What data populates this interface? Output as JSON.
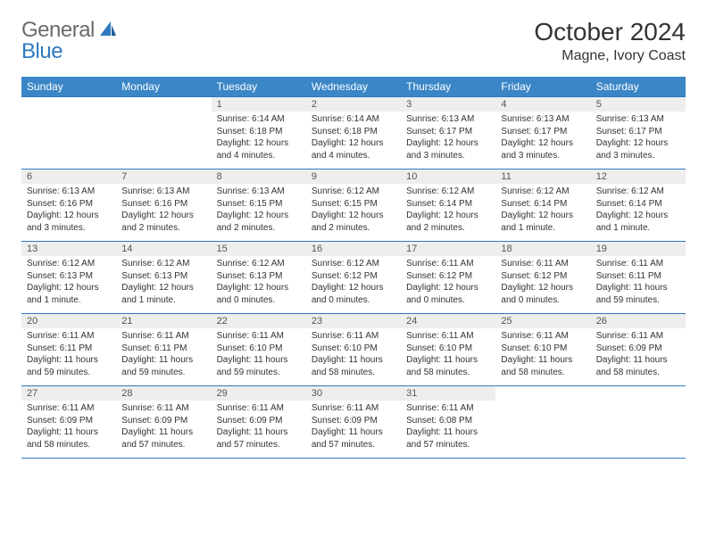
{
  "brand": {
    "general": "General",
    "blue": "Blue"
  },
  "title": {
    "month_year": "October 2024",
    "location": "Magne, Ivory Coast"
  },
  "headers": [
    "Sunday",
    "Monday",
    "Tuesday",
    "Wednesday",
    "Thursday",
    "Friday",
    "Saturday"
  ],
  "styling": {
    "header_bg": "#3b86c6",
    "header_text": "#ffffff",
    "daynum_bg": "#eeeeee",
    "rule_color": "#2f7abf",
    "body_text": "#333333",
    "font_family": "Arial, Helvetica, sans-serif",
    "title_fontsize": 28,
    "header_fontsize": 12,
    "daynum_fontsize": 11,
    "detail_fontsize": 10
  },
  "weeks": [
    [
      null,
      null,
      {
        "n": "1",
        "sr": "Sunrise: 6:14 AM",
        "ss": "Sunset: 6:18 PM",
        "dl": "Daylight: 12 hours and 4 minutes."
      },
      {
        "n": "2",
        "sr": "Sunrise: 6:14 AM",
        "ss": "Sunset: 6:18 PM",
        "dl": "Daylight: 12 hours and 4 minutes."
      },
      {
        "n": "3",
        "sr": "Sunrise: 6:13 AM",
        "ss": "Sunset: 6:17 PM",
        "dl": "Daylight: 12 hours and 3 minutes."
      },
      {
        "n": "4",
        "sr": "Sunrise: 6:13 AM",
        "ss": "Sunset: 6:17 PM",
        "dl": "Daylight: 12 hours and 3 minutes."
      },
      {
        "n": "5",
        "sr": "Sunrise: 6:13 AM",
        "ss": "Sunset: 6:17 PM",
        "dl": "Daylight: 12 hours and 3 minutes."
      }
    ],
    [
      {
        "n": "6",
        "sr": "Sunrise: 6:13 AM",
        "ss": "Sunset: 6:16 PM",
        "dl": "Daylight: 12 hours and 3 minutes."
      },
      {
        "n": "7",
        "sr": "Sunrise: 6:13 AM",
        "ss": "Sunset: 6:16 PM",
        "dl": "Daylight: 12 hours and 2 minutes."
      },
      {
        "n": "8",
        "sr": "Sunrise: 6:13 AM",
        "ss": "Sunset: 6:15 PM",
        "dl": "Daylight: 12 hours and 2 minutes."
      },
      {
        "n": "9",
        "sr": "Sunrise: 6:12 AM",
        "ss": "Sunset: 6:15 PM",
        "dl": "Daylight: 12 hours and 2 minutes."
      },
      {
        "n": "10",
        "sr": "Sunrise: 6:12 AM",
        "ss": "Sunset: 6:14 PM",
        "dl": "Daylight: 12 hours and 2 minutes."
      },
      {
        "n": "11",
        "sr": "Sunrise: 6:12 AM",
        "ss": "Sunset: 6:14 PM",
        "dl": "Daylight: 12 hours and 1 minute."
      },
      {
        "n": "12",
        "sr": "Sunrise: 6:12 AM",
        "ss": "Sunset: 6:14 PM",
        "dl": "Daylight: 12 hours and 1 minute."
      }
    ],
    [
      {
        "n": "13",
        "sr": "Sunrise: 6:12 AM",
        "ss": "Sunset: 6:13 PM",
        "dl": "Daylight: 12 hours and 1 minute."
      },
      {
        "n": "14",
        "sr": "Sunrise: 6:12 AM",
        "ss": "Sunset: 6:13 PM",
        "dl": "Daylight: 12 hours and 1 minute."
      },
      {
        "n": "15",
        "sr": "Sunrise: 6:12 AM",
        "ss": "Sunset: 6:13 PM",
        "dl": "Daylight: 12 hours and 0 minutes."
      },
      {
        "n": "16",
        "sr": "Sunrise: 6:12 AM",
        "ss": "Sunset: 6:12 PM",
        "dl": "Daylight: 12 hours and 0 minutes."
      },
      {
        "n": "17",
        "sr": "Sunrise: 6:11 AM",
        "ss": "Sunset: 6:12 PM",
        "dl": "Daylight: 12 hours and 0 minutes."
      },
      {
        "n": "18",
        "sr": "Sunrise: 6:11 AM",
        "ss": "Sunset: 6:12 PM",
        "dl": "Daylight: 12 hours and 0 minutes."
      },
      {
        "n": "19",
        "sr": "Sunrise: 6:11 AM",
        "ss": "Sunset: 6:11 PM",
        "dl": "Daylight: 11 hours and 59 minutes."
      }
    ],
    [
      {
        "n": "20",
        "sr": "Sunrise: 6:11 AM",
        "ss": "Sunset: 6:11 PM",
        "dl": "Daylight: 11 hours and 59 minutes."
      },
      {
        "n": "21",
        "sr": "Sunrise: 6:11 AM",
        "ss": "Sunset: 6:11 PM",
        "dl": "Daylight: 11 hours and 59 minutes."
      },
      {
        "n": "22",
        "sr": "Sunrise: 6:11 AM",
        "ss": "Sunset: 6:10 PM",
        "dl": "Daylight: 11 hours and 59 minutes."
      },
      {
        "n": "23",
        "sr": "Sunrise: 6:11 AM",
        "ss": "Sunset: 6:10 PM",
        "dl": "Daylight: 11 hours and 58 minutes."
      },
      {
        "n": "24",
        "sr": "Sunrise: 6:11 AM",
        "ss": "Sunset: 6:10 PM",
        "dl": "Daylight: 11 hours and 58 minutes."
      },
      {
        "n": "25",
        "sr": "Sunrise: 6:11 AM",
        "ss": "Sunset: 6:10 PM",
        "dl": "Daylight: 11 hours and 58 minutes."
      },
      {
        "n": "26",
        "sr": "Sunrise: 6:11 AM",
        "ss": "Sunset: 6:09 PM",
        "dl": "Daylight: 11 hours and 58 minutes."
      }
    ],
    [
      {
        "n": "27",
        "sr": "Sunrise: 6:11 AM",
        "ss": "Sunset: 6:09 PM",
        "dl": "Daylight: 11 hours and 58 minutes."
      },
      {
        "n": "28",
        "sr": "Sunrise: 6:11 AM",
        "ss": "Sunset: 6:09 PM",
        "dl": "Daylight: 11 hours and 57 minutes."
      },
      {
        "n": "29",
        "sr": "Sunrise: 6:11 AM",
        "ss": "Sunset: 6:09 PM",
        "dl": "Daylight: 11 hours and 57 minutes."
      },
      {
        "n": "30",
        "sr": "Sunrise: 6:11 AM",
        "ss": "Sunset: 6:09 PM",
        "dl": "Daylight: 11 hours and 57 minutes."
      },
      {
        "n": "31",
        "sr": "Sunrise: 6:11 AM",
        "ss": "Sunset: 6:08 PM",
        "dl": "Daylight: 11 hours and 57 minutes."
      },
      null,
      null
    ]
  ]
}
